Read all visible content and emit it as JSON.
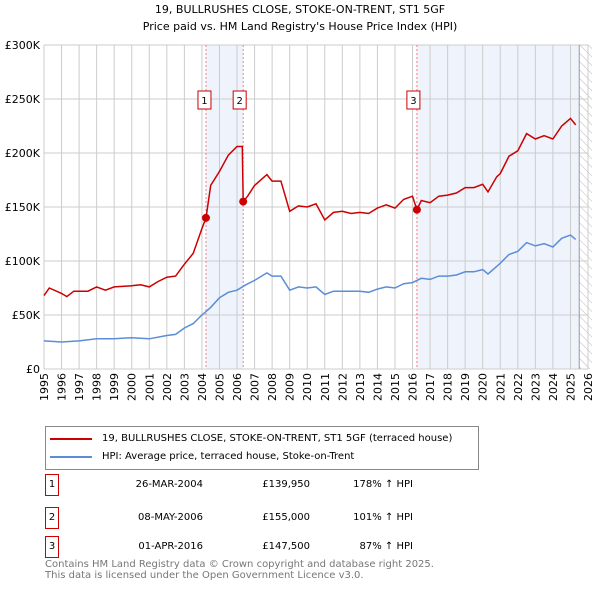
{
  "chart_data": {
    "type": "line",
    "title": "19, BULLRUSHES CLOSE, STOKE-ON-TRENT, ST1 5GF",
    "subtitle": "Price paid vs. HM Land Registry's House Price Index (HPI)",
    "xlim": [
      1995,
      2026
    ],
    "ylim": [
      0,
      300000
    ],
    "x_ticks": [
      "1995",
      "1996",
      "1997",
      "1998",
      "1999",
      "2000",
      "2001",
      "2002",
      "2003",
      "2004",
      "2005",
      "2006",
      "2007",
      "2008",
      "2009",
      "2010",
      "2011",
      "2012",
      "2013",
      "2014",
      "2015",
      "2016",
      "2017",
      "2018",
      "2019",
      "2020",
      "2021",
      "2022",
      "2023",
      "2024",
      "2025",
      "2026"
    ],
    "y_ticks": [
      {
        "v": 0,
        "label": "£0"
      },
      {
        "v": 50000,
        "label": "£50K"
      },
      {
        "v": 100000,
        "label": "£100K"
      },
      {
        "v": 150000,
        "label": "£150K"
      },
      {
        "v": 200000,
        "label": "£200K"
      },
      {
        "v": 250000,
        "label": "£250K"
      },
      {
        "v": 300000,
        "label": "£300K"
      }
    ],
    "grid": true,
    "shaded_ranges": [
      [
        2004.23,
        2006.35
      ],
      [
        2016.25,
        2025.5
      ]
    ],
    "hatched_from": 2025.5,
    "series": [
      {
        "name": "19, BULLRUSHES CLOSE, STOKE-ON-TRENT, ST1 5GF (terraced house)",
        "color": "#cc0000",
        "x": [
          1995,
          1995.3,
          1996,
          1996.3,
          1996.7,
          1997.5,
          1998,
          1998.5,
          1999,
          2000,
          2000.5,
          2001,
          2001.5,
          2002,
          2002.5,
          2003,
          2003.5,
          2004,
          2004.23,
          2004.5,
          2005,
          2005.5,
          2006,
          2006.3,
          2006.35,
          2006.6,
          2007,
          2007.7,
          2008,
          2008.5,
          2009,
          2009.5,
          2010,
          2010.5,
          2011,
          2011.5,
          2012,
          2012.5,
          2013,
          2013.5,
          2014,
          2014.5,
          2015,
          2015.5,
          2016,
          2016.25,
          2016.5,
          2017,
          2017.5,
          2018,
          2018.5,
          2019,
          2019.5,
          2020,
          2020.3,
          2020.8,
          2021,
          2021.5,
          2022,
          2022.5,
          2023,
          2023.5,
          2024,
          2024.5,
          2025,
          2025.3
        ],
        "y": [
          68000,
          75000,
          70000,
          67000,
          72000,
          72000,
          76000,
          73000,
          76000,
          77000,
          78000,
          76000,
          81000,
          85000,
          86000,
          97000,
          107000,
          130000,
          139950,
          170000,
          183000,
          198000,
          206000,
          206000,
          155000,
          160000,
          170000,
          180000,
          174000,
          174000,
          146000,
          151000,
          150000,
          153000,
          138000,
          145000,
          146000,
          144000,
          145000,
          144000,
          149000,
          152000,
          149000,
          157000,
          160000,
          147500,
          156000,
          154000,
          160000,
          161000,
          163000,
          168000,
          168000,
          171000,
          164000,
          178000,
          181000,
          197000,
          202000,
          218000,
          213000,
          216000,
          213000,
          225000,
          232000,
          226000
        ]
      },
      {
        "name": "HPI: Average price, terraced house, Stoke-on-Trent",
        "color": "#5b8ed6",
        "x": [
          1995,
          1996,
          1997,
          1998,
          1999,
          2000,
          2001,
          2002,
          2002.5,
          2003,
          2003.5,
          2004,
          2004.5,
          2005,
          2005.5,
          2006,
          2006.5,
          2007,
          2007.7,
          2008,
          2008.5,
          2009,
          2009.5,
          2010,
          2010.5,
          2011,
          2011.5,
          2012,
          2013,
          2013.5,
          2014,
          2014.5,
          2015,
          2015.5,
          2016,
          2016.5,
          2017,
          2017.5,
          2018,
          2018.5,
          2019,
          2019.5,
          2020,
          2020.3,
          2020.8,
          2021,
          2021.5,
          2022,
          2022.5,
          2023,
          2023.5,
          2024,
          2024.5,
          2025,
          2025.3
        ],
        "y": [
          26000,
          25000,
          26000,
          28000,
          28000,
          29000,
          28000,
          31000,
          32000,
          38000,
          42000,
          50000,
          57000,
          66000,
          71000,
          73000,
          78000,
          82000,
          89000,
          86000,
          86000,
          73000,
          76000,
          75000,
          76000,
          69000,
          72000,
          72000,
          72000,
          71000,
          74000,
          76000,
          75000,
          79000,
          80000,
          84000,
          83000,
          86000,
          86000,
          87000,
          90000,
          90000,
          92000,
          88000,
          95000,
          98000,
          106000,
          109000,
          117000,
          114000,
          116000,
          113000,
          121000,
          124000,
          120000
        ]
      }
    ],
    "sales": [
      {
        "label": "1",
        "x": 2004.23,
        "y": 139950
      },
      {
        "label": "2",
        "x": 2006.35,
        "y": 155000
      },
      {
        "label": "3",
        "x": 2016.25,
        "y": 147500
      }
    ]
  },
  "legend": {
    "red": "19, BULLRUSHES CLOSE, STOKE-ON-TRENT, ST1 5GF (terraced house)",
    "blue": "HPI: Average price, terraced house, Stoke-on-Trent"
  },
  "transactions": [
    {
      "num": "1",
      "date": "26-MAR-2004",
      "price": "£139,950",
      "pct": "178% ↑ HPI"
    },
    {
      "num": "2",
      "date": "08-MAY-2006",
      "price": "£155,000",
      "pct": "101% ↑ HPI"
    },
    {
      "num": "3",
      "date": "01-APR-2016",
      "price": "£147,500",
      "pct": "87% ↑ HPI"
    }
  ],
  "footer": {
    "line1": "Contains HM Land Registry data © Crown copyright and database right 2025.",
    "line2": "This data is licensed under the Open Government Licence v3.0."
  }
}
